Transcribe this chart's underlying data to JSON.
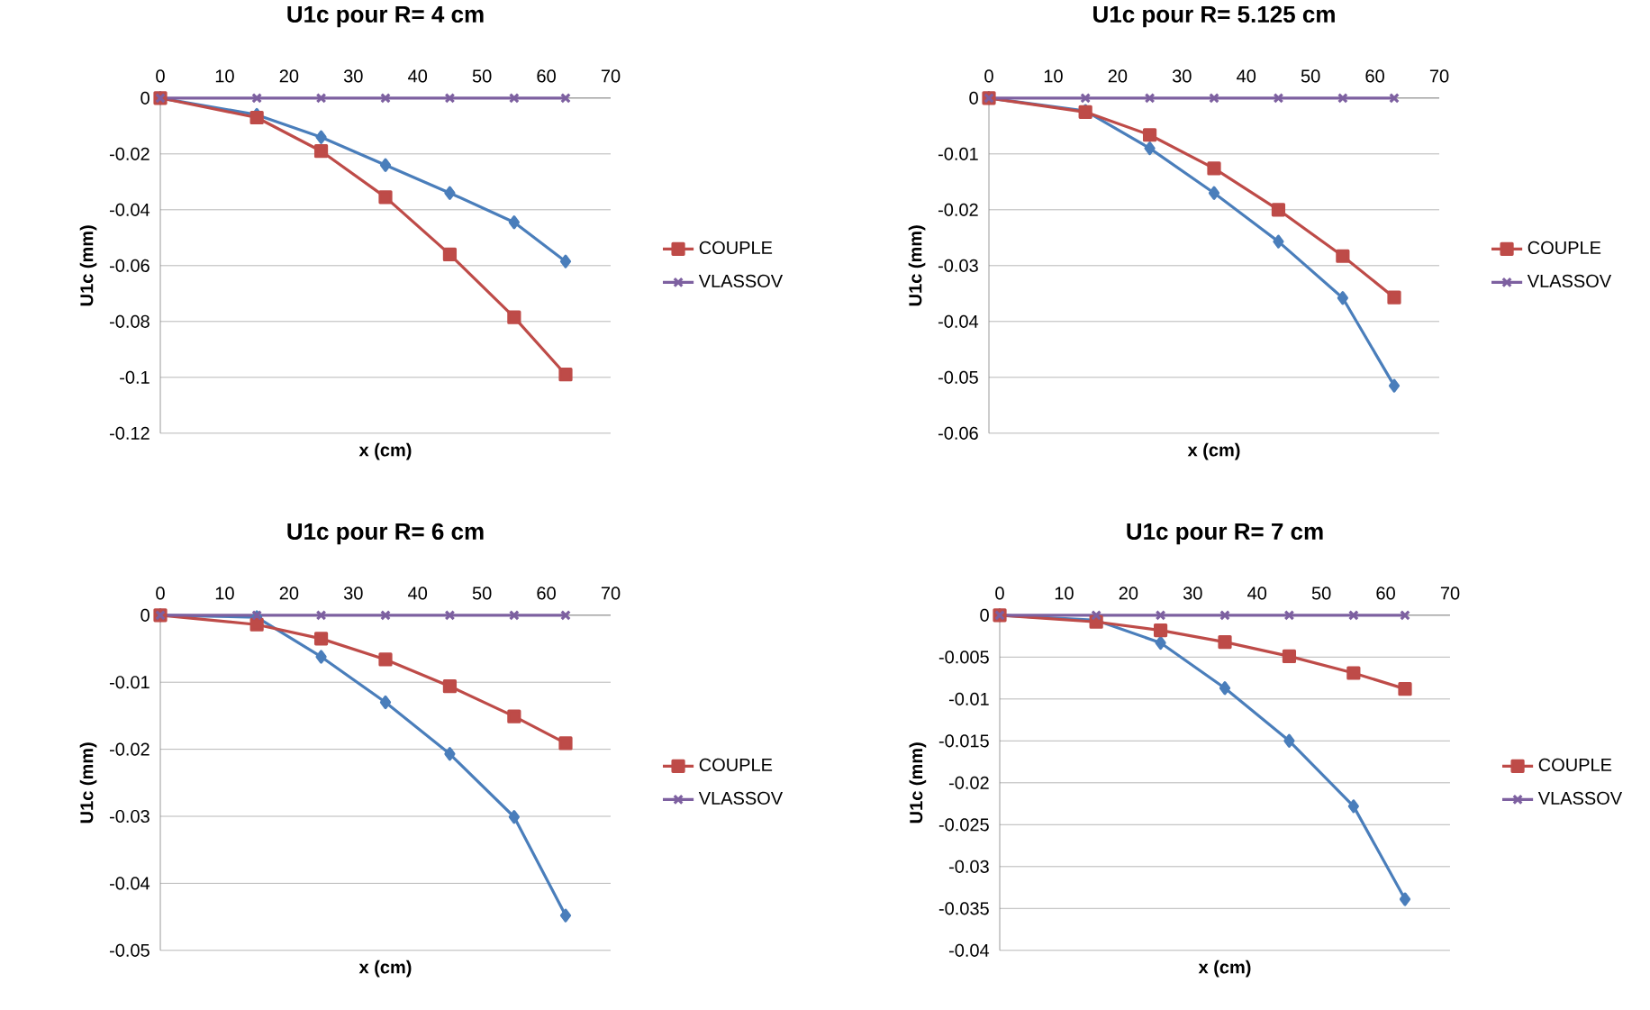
{
  "chart_data": [
    {
      "type": "line",
      "title": "U1c  pour R= 4 cm",
      "xlabel": "x (cm)",
      "ylabel": "U1c (mm)",
      "xlim": [
        0,
        70
      ],
      "xticks": [
        0,
        10,
        20,
        30,
        40,
        50,
        60,
        70
      ],
      "ylim": [
        -0.12,
        0
      ],
      "yticks": [
        -0.12,
        -0.1,
        -0.08,
        -0.06,
        -0.04,
        -0.02,
        0
      ],
      "grid": "y",
      "legend": "right",
      "x": [
        0,
        15,
        25,
        35,
        45,
        55,
        63
      ],
      "series": [
        {
          "color": "#4a7ebb",
          "marker": "diamond",
          "values": [
            0,
            -0.006,
            -0.014,
            -0.024,
            -0.034,
            -0.0445,
            -0.0585
          ]
        },
        {
          "name": "COUPLE",
          "color": "#be4b48",
          "marker": "square",
          "values": [
            0,
            -0.007,
            -0.019,
            -0.0355,
            -0.056,
            -0.0785,
            -0.099
          ]
        },
        {
          "name": "VLASSOV",
          "color": "#7d60a0",
          "marker": "cross",
          "values": [
            0,
            0,
            0,
            0,
            0,
            0,
            0
          ]
        }
      ]
    },
    {
      "type": "line",
      "title": "U1c  pour R= 5.125 cm",
      "xlabel": "x (cm)",
      "ylabel": "U1c (mm)",
      "xlim": [
        0,
        70
      ],
      "xticks": [
        0,
        10,
        20,
        30,
        40,
        50,
        60,
        70
      ],
      "ylim": [
        -0.06,
        0
      ],
      "yticks": [
        -0.06,
        -0.05,
        -0.04,
        -0.03,
        -0.02,
        -0.01,
        0
      ],
      "grid": "y",
      "legend": "right",
      "x": [
        0,
        15,
        25,
        35,
        45,
        55,
        63
      ],
      "series": [
        {
          "color": "#4a7ebb",
          "marker": "diamond",
          "values": [
            0,
            -0.0023,
            -0.009,
            -0.017,
            -0.0257,
            -0.0358,
            -0.0515
          ]
        },
        {
          "name": "COUPLE",
          "color": "#be4b48",
          "marker": "square",
          "values": [
            0,
            -0.0025,
            -0.0066,
            -0.0126,
            -0.02,
            -0.0283,
            -0.0357
          ]
        },
        {
          "name": "VLASSOV",
          "color": "#7d60a0",
          "marker": "cross",
          "values": [
            0,
            0,
            0,
            0,
            0,
            0,
            0
          ]
        }
      ]
    },
    {
      "type": "line",
      "title": "U1c  pour R= 6 cm",
      "xlabel": "x (cm)",
      "ylabel": "U1c (mm)",
      "xlim": [
        0,
        70
      ],
      "xticks": [
        0,
        10,
        20,
        30,
        40,
        50,
        60,
        70
      ],
      "ylim": [
        -0.05,
        0
      ],
      "yticks": [
        -0.05,
        -0.04,
        -0.03,
        -0.02,
        -0.01,
        0
      ],
      "grid": "y",
      "legend": "right",
      "x": [
        0,
        15,
        25,
        35,
        45,
        55,
        63
      ],
      "series": [
        {
          "color": "#4a7ebb",
          "marker": "diamond",
          "values": [
            0,
            -0.0003,
            -0.0062,
            -0.013,
            -0.0207,
            -0.0301,
            -0.0448
          ]
        },
        {
          "name": "COUPLE",
          "color": "#be4b48",
          "marker": "square",
          "values": [
            0,
            -0.0014,
            -0.0035,
            -0.0066,
            -0.0106,
            -0.0151,
            -0.0191
          ]
        },
        {
          "name": "VLASSOV",
          "color": "#7d60a0",
          "marker": "cross",
          "values": [
            0,
            0,
            0,
            0,
            0,
            0,
            0
          ]
        }
      ]
    },
    {
      "type": "line",
      "title": "U1c  pour R= 7 cm",
      "xlabel": "x (cm)",
      "ylabel": "U1c (mm)",
      "xlim": [
        0,
        70
      ],
      "xticks": [
        0,
        10,
        20,
        30,
        40,
        50,
        60,
        70
      ],
      "ylim": [
        -0.04,
        0
      ],
      "yticks": [
        -0.04,
        -0.035,
        -0.03,
        -0.025,
        -0.02,
        -0.015,
        -0.01,
        -0.005,
        0
      ],
      "grid": "y",
      "legend": "right",
      "x": [
        0,
        15,
        25,
        35,
        45,
        55,
        63
      ],
      "series": [
        {
          "color": "#4a7ebb",
          "marker": "diamond",
          "values": [
            0,
            -0.0006,
            -0.0033,
            -0.0087,
            -0.015,
            -0.0228,
            -0.0339
          ]
        },
        {
          "name": "COUPLE",
          "color": "#be4b48",
          "marker": "square",
          "values": [
            0,
            -0.0008,
            -0.0018,
            -0.0032,
            -0.0049,
            -0.0069,
            -0.0088
          ]
        },
        {
          "name": "VLASSOV",
          "color": "#7d60a0",
          "marker": "cross",
          "values": [
            0,
            0,
            0,
            0,
            0,
            0,
            0
          ]
        }
      ]
    }
  ]
}
